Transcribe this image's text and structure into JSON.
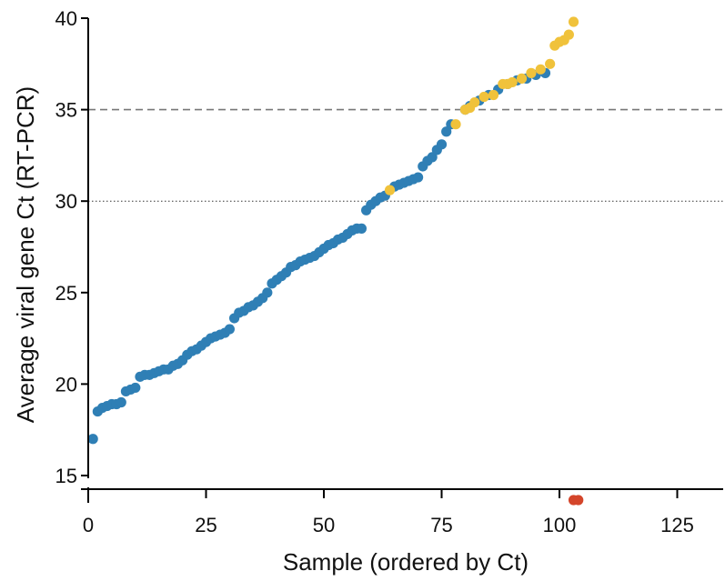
{
  "chart_data": {
    "type": "scatter",
    "title": "",
    "xlabel": "Sample (ordered by Ct)",
    "ylabel": "Average viral gene Ct (RT-PCR)",
    "xlim": [
      0,
      135
    ],
    "ylim": [
      15,
      40
    ],
    "xticks": [
      "0",
      "25",
      "50",
      "75",
      "100",
      "125"
    ],
    "yticks": [
      "15",
      "20",
      "25",
      "30",
      "35",
      "40"
    ],
    "reference_lines": [
      {
        "y": 35,
        "style": "dashed"
      },
      {
        "y": 30,
        "style": "dotted"
      }
    ],
    "axis_break": "y below 15",
    "legend": "none",
    "grid": false,
    "colors": {
      "blue": "#2f7fb5",
      "yellow": "#f0c23b",
      "red": "#d4452a"
    },
    "series": [
      {
        "color": "blue",
        "x": [
          1,
          2,
          3,
          4,
          5,
          6,
          7,
          8,
          9,
          10,
          11,
          12,
          13,
          14,
          15,
          16,
          17,
          18,
          19,
          20,
          21,
          22,
          23,
          24,
          25,
          26,
          27,
          28,
          29,
          30,
          31,
          32,
          33,
          34,
          35,
          36,
          37,
          38,
          39,
          40,
          41,
          42,
          43,
          44,
          45,
          46,
          47,
          48,
          49,
          50,
          51,
          52,
          53,
          54,
          55,
          56,
          57,
          58,
          59,
          60,
          61,
          62,
          63,
          65,
          66,
          67,
          68,
          69,
          70,
          71,
          72,
          73,
          74,
          75,
          76,
          77,
          80,
          81,
          83,
          85,
          87,
          89,
          91,
          93,
          95,
          97
        ],
        "y": [
          17.0,
          18.5,
          18.7,
          18.8,
          18.9,
          18.9,
          19.0,
          19.6,
          19.7,
          19.8,
          20.4,
          20.5,
          20.5,
          20.6,
          20.7,
          20.8,
          20.8,
          21.0,
          21.1,
          21.3,
          21.6,
          21.8,
          21.9,
          22.1,
          22.3,
          22.5,
          22.6,
          22.7,
          22.8,
          23.0,
          23.6,
          23.9,
          24.0,
          24.2,
          24.3,
          24.5,
          24.7,
          25.0,
          25.5,
          25.7,
          25.9,
          26.1,
          26.4,
          26.5,
          26.7,
          26.8,
          26.9,
          27.0,
          27.2,
          27.4,
          27.6,
          27.7,
          27.9,
          28.0,
          28.2,
          28.4,
          28.5,
          28.5,
          29.5,
          29.8,
          30.0,
          30.2,
          30.3,
          30.8,
          30.9,
          31.0,
          31.1,
          31.2,
          31.3,
          31.9,
          32.2,
          32.4,
          32.8,
          33.1,
          33.8,
          34.2,
          35.0,
          35.2,
          35.5,
          35.8,
          36.1,
          36.4,
          36.6,
          36.7,
          36.9,
          37.0
        ]
      },
      {
        "color": "yellow",
        "x": [
          64,
          78,
          80,
          81,
          82,
          84,
          86,
          88,
          89,
          90,
          92,
          94,
          96,
          98,
          99,
          100,
          101,
          102,
          103
        ],
        "y": [
          30.6,
          34.2,
          35.0,
          35.1,
          35.4,
          35.7,
          35.8,
          36.4,
          36.4,
          36.5,
          36.7,
          37.0,
          37.2,
          37.5,
          38.5,
          38.7,
          38.8,
          39.1,
          39.8
        ]
      },
      {
        "color": "red",
        "x": [
          103,
          104
        ],
        "y": [
          "below axis",
          "below axis"
        ]
      }
    ]
  }
}
